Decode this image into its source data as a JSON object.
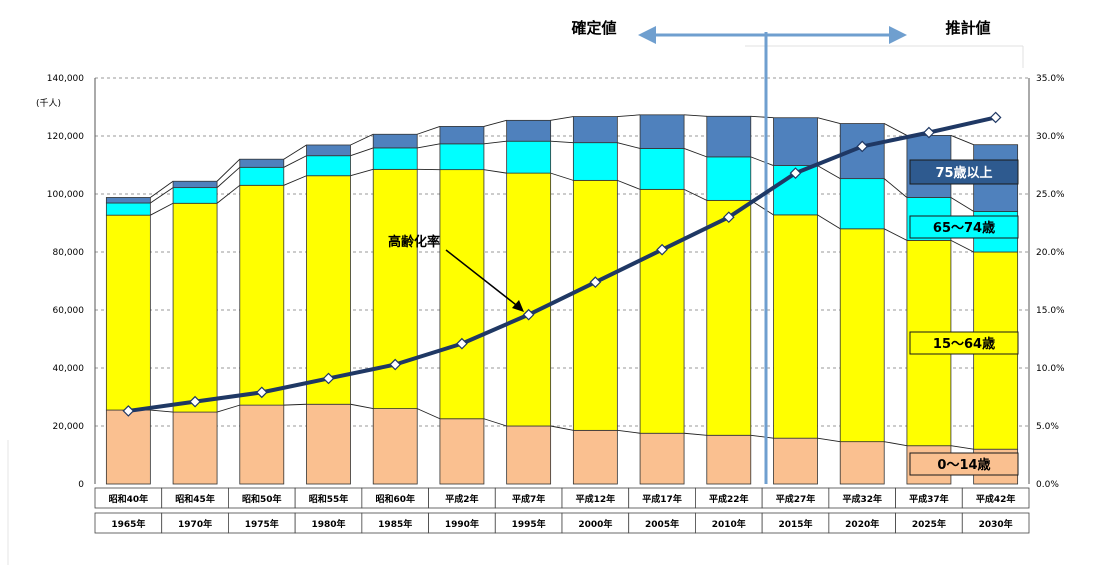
{
  "chart_data": {
    "type": "bar",
    "title": "",
    "ylabel": "(千人)",
    "ylim": [
      0,
      140000
    ],
    "y2lim": [
      0,
      35
    ],
    "yticks": [
      "0",
      "20,000",
      "40,000",
      "60,000",
      "80,000",
      "100,000",
      "120,000",
      "140,000"
    ],
    "y2ticks": [
      "0.0%",
      "5.0%",
      "10.0%",
      "15.0%",
      "20.0%",
      "25.0%",
      "30.0%",
      "35.0%"
    ],
    "grid": true,
    "categories": [
      "昭和40年",
      "昭和45年",
      "昭和50年",
      "昭和55年",
      "昭和60年",
      "平成2年",
      "平成7年",
      "平成12年",
      "平成17年",
      "平成22年",
      "平成27年",
      "平成32年",
      "平成37年",
      "平成42年"
    ],
    "categories_year": [
      "1965年",
      "1970年",
      "1975年",
      "1980年",
      "1985年",
      "1990年",
      "1995年",
      "2000年",
      "2005年",
      "2010年",
      "2015年",
      "2020年",
      "2025年",
      "2030年"
    ],
    "series": [
      {
        "name": "0～14歳",
        "color": "#FAC090",
        "values": [
          25500,
          24800,
          27200,
          27500,
          26000,
          22500,
          20000,
          18500,
          17500,
          16800,
          15800,
          14600,
          13200,
          12000
        ]
      },
      {
        "name": "15～64歳",
        "color": "#FFFF00",
        "values": [
          67200,
          72000,
          75800,
          78800,
          82500,
          85900,
          87200,
          86200,
          84100,
          81000,
          77000,
          73400,
          70800,
          68000
        ]
      },
      {
        "name": "65～74歳",
        "color": "#00FFFF",
        "values": [
          4200,
          5400,
          6200,
          6900,
          7400,
          8900,
          11000,
          13000,
          14100,
          15000,
          17000,
          17300,
          14800,
          14000
        ]
      },
      {
        "name": "75歳以上",
        "color": "#4F81BD",
        "values": [
          1900,
          2200,
          2800,
          3700,
          4700,
          6000,
          7200,
          9000,
          11600,
          14000,
          16500,
          19000,
          21400,
          23000
        ]
      }
    ],
    "line_series": {
      "name": "高齢化率",
      "color": "#1F3864",
      "values": [
        6.3,
        7.1,
        7.9,
        9.1,
        10.3,
        12.1,
        14.6,
        17.4,
        20.2,
        23.0,
        26.8,
        29.1,
        30.3,
        31.6
      ]
    },
    "header_left": "確定値",
    "header_right": "推計値",
    "annotation": "高齢化率"
  }
}
